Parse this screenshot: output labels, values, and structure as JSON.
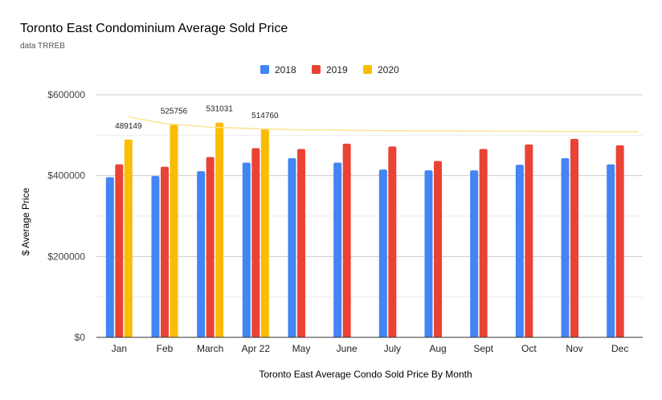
{
  "chart_data": {
    "type": "bar",
    "title": "Toronto East Condominium Average Sold Price",
    "subtitle": "data TRREB",
    "xlabel": "Toronto East Average Condo Sold Price By Month",
    "ylabel": "$ Average Price",
    "ylim": [
      0,
      600000
    ],
    "y_ticks": [
      0,
      200000,
      400000,
      600000
    ],
    "y_tick_labels": [
      "$0",
      "$200000",
      "$400000",
      "$600000"
    ],
    "grid": true,
    "legend_position": "top-center",
    "categories": [
      "Jan",
      "Feb",
      "March",
      "Apr 22",
      "May",
      "June",
      "July",
      "Aug",
      "Sept",
      "Oct",
      "Nov",
      "Dec"
    ],
    "series": [
      {
        "name": "2018",
        "color": "#4285f4",
        "values": [
          396000,
          399000,
          411000,
          432000,
          443000,
          432000,
          415000,
          413000,
          413000,
          427000,
          443000,
          428000
        ]
      },
      {
        "name": "2019",
        "color": "#ea4335",
        "values": [
          428000,
          422000,
          446000,
          468000,
          466000,
          479000,
          472000,
          436000,
          466000,
          477000,
          491000,
          475000
        ]
      },
      {
        "name": "2020",
        "color": "#fbbc04",
        "values": [
          489149,
          525756,
          531031,
          514760,
          null,
          null,
          null,
          null,
          null,
          null,
          null,
          null
        ]
      }
    ],
    "data_labels": {
      "series": "2020",
      "labels": [
        "489149",
        "525756",
        "531031",
        "514760"
      ]
    },
    "trendline": {
      "series": "2020",
      "color": "#fde293",
      "values": [
        545000,
        529000,
        520000,
        516000,
        513000,
        512000,
        511000,
        510500,
        510000,
        509500,
        509000,
        508500
      ]
    }
  }
}
